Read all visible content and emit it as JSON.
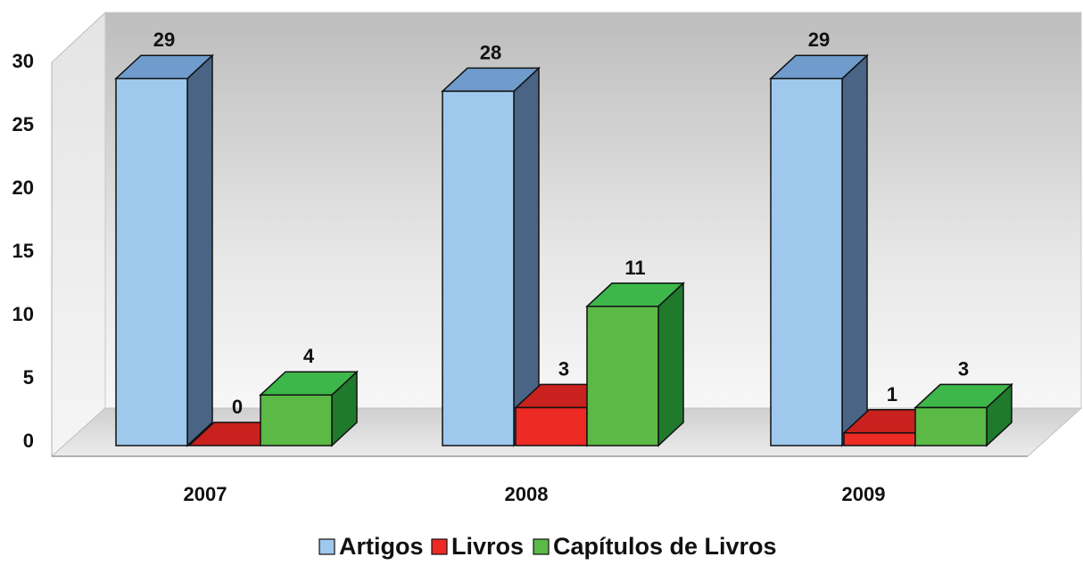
{
  "chart_data": {
    "type": "bar",
    "style": "3d-clustered-column",
    "title": "",
    "xlabel": "",
    "ylabel": "",
    "categories": [
      "2007",
      "2008",
      "2009"
    ],
    "series": [
      {
        "name": "Artigos",
        "values": [
          29,
          28,
          29
        ],
        "color": "#9ec8ec",
        "side_color": "#4a6485",
        "top_color": "#6f9ccd"
      },
      {
        "name": "Livros",
        "values": [
          0,
          3,
          1
        ],
        "color": "#ee2a24",
        "side_color": "#9e1b18",
        "top_color": "#c9211d"
      },
      {
        "name": "Capítulos de Livros",
        "values": [
          4,
          11,
          3
        ],
        "color": "#5bb946",
        "side_color": "#1f7a2c",
        "top_color": "#3db64a"
      }
    ],
    "ylim": [
      0,
      30
    ],
    "y_ticks": [
      0,
      5,
      10,
      15,
      20,
      25,
      30
    ],
    "grid": false,
    "data_labels": true,
    "legend": {
      "position": "bottom"
    }
  }
}
